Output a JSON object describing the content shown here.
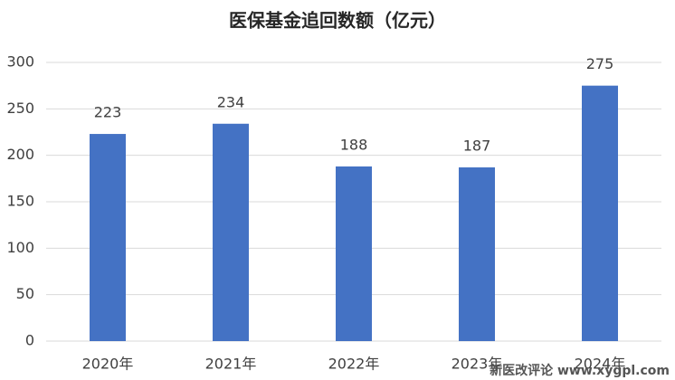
{
  "chart_data": {
    "type": "bar",
    "title": "医保基金追回数额（亿元）",
    "categories": [
      "2020年",
      "2021年",
      "2022年",
      "2023年",
      "2024年"
    ],
    "values": [
      223,
      234,
      188,
      187,
      275
    ],
    "color": "#4472c4",
    "ylim": [
      0,
      300
    ],
    "yticks": [
      0,
      50,
      100,
      150,
      200,
      250,
      300
    ],
    "grid": true,
    "watermark": "新医改评论 www.xygpl.com"
  }
}
